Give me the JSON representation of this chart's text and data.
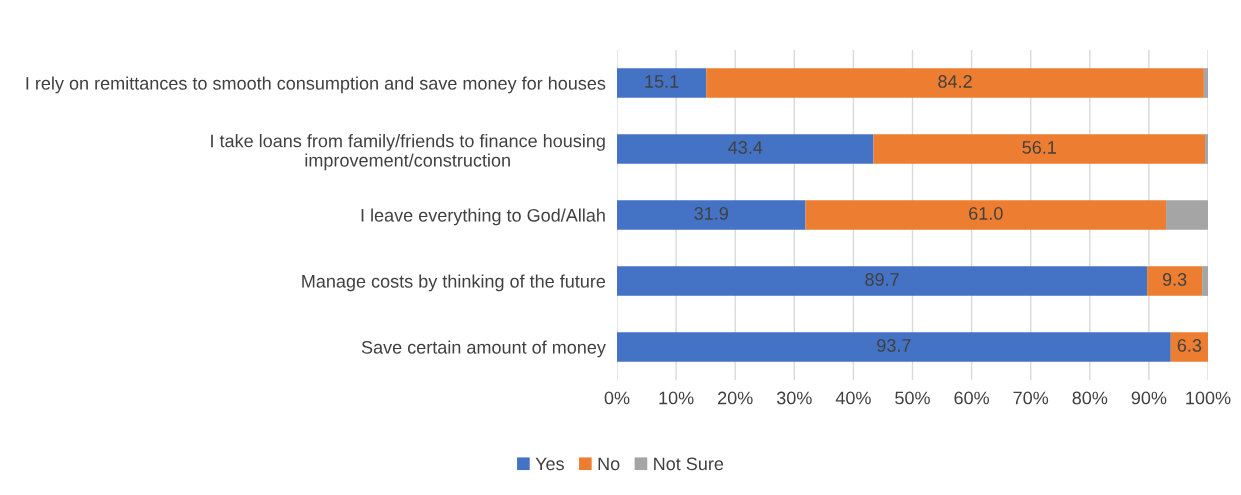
{
  "chart_data": {
    "type": "bar",
    "orientation": "horizontal",
    "stacked": true,
    "categories": [
      "I rely on remittances to smooth consumption and save money for houses",
      "I take loans from family/friends to finance housing\nimprovement/construction",
      "I leave everything to God/Allah",
      "Manage costs by thinking of the future",
      "Save certain amount of money"
    ],
    "series": [
      {
        "name": "Yes",
        "color": "#4472c4",
        "values": [
          15.1,
          43.4,
          31.9,
          89.7,
          93.7
        ],
        "value_labels": [
          "15.1",
          "43.4",
          "31.9",
          "89.7",
          "93.7"
        ]
      },
      {
        "name": "No",
        "color": "#ed7d31",
        "values": [
          84.2,
          56.1,
          61.0,
          9.3,
          6.3
        ],
        "value_labels": [
          "84.2",
          "56.1",
          "61.0",
          "9.3",
          "6.3"
        ]
      },
      {
        "name": "Not Sure",
        "color": "#a5a5a5",
        "values": [
          0.7,
          0.5,
          7.1,
          1.0,
          0
        ],
        "value_labels": [
          null,
          null,
          null,
          null,
          null
        ]
      }
    ],
    "xlim": [
      0,
      100
    ],
    "xticks": [
      {
        "value": 0,
        "label": "0%"
      },
      {
        "value": 10,
        "label": "10%"
      },
      {
        "value": 20,
        "label": "20%"
      },
      {
        "value": 30,
        "label": "30%"
      },
      {
        "value": 40,
        "label": "40%"
      },
      {
        "value": 50,
        "label": "50%"
      },
      {
        "value": 60,
        "label": "60%"
      },
      {
        "value": 70,
        "label": "70%"
      },
      {
        "value": 80,
        "label": "80%"
      },
      {
        "value": 90,
        "label": "90%"
      },
      {
        "value": 100,
        "label": "100%"
      }
    ],
    "grid": "x",
    "legend": "bottom"
  }
}
